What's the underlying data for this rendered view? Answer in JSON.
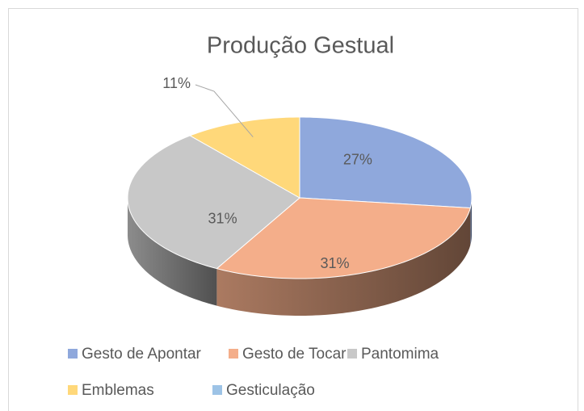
{
  "chart_data": {
    "type": "pie3d",
    "title": "Produção Gestual",
    "categories": [
      "Gesto de Apontar",
      "Gesto de Tocar",
      "Pantomima",
      "Emblemas",
      "Gesticulação"
    ],
    "values": [
      27,
      31,
      31,
      11,
      0
    ],
    "value_labels": [
      "27%",
      "31%",
      "31%",
      "11%",
      null
    ],
    "colors": [
      "#8fa8dc",
      "#f4ae8a",
      "#c8c8c8",
      "#ffd87a",
      "#9dc3e6"
    ],
    "legend": "bottom"
  }
}
